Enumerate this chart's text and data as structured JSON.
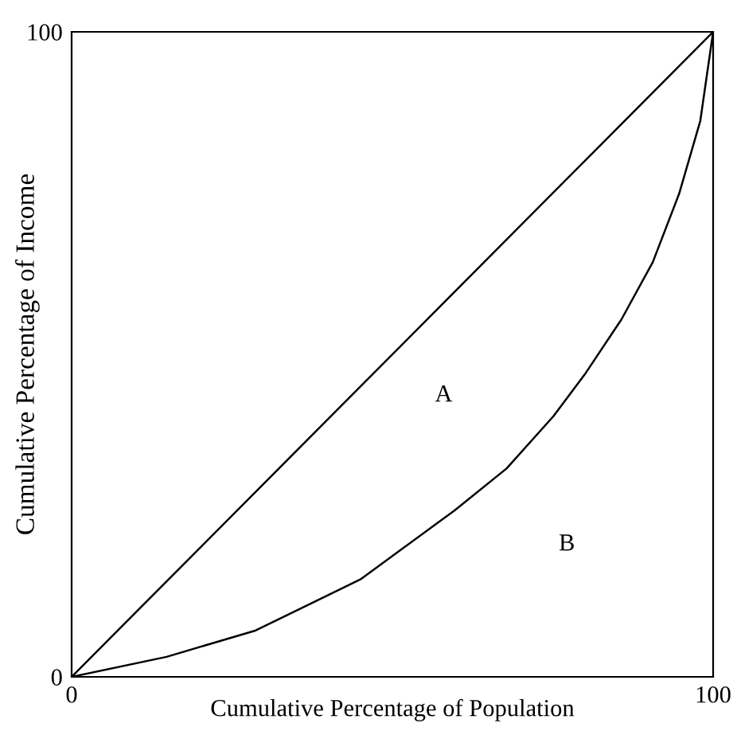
{
  "chart_data": {
    "type": "line",
    "xlabel": "Cumulative Percentage of Population",
    "ylabel": "Cumulative Percentage of Income",
    "x": [
      0,
      14.8,
      28.7,
      45,
      59.7,
      67.8,
      75.1,
      80,
      85.7,
      90.6,
      94.7,
      98,
      100
    ],
    "series": [
      {
        "color": "#000000",
        "x": [
          0,
          100
        ],
        "values": [
          0,
          100
        ]
      },
      {
        "color": "#000000",
        "values": [
          0,
          3.1,
          7.2,
          15.1,
          25.8,
          32.3,
          40.4,
          46.9,
          55.4,
          64.3,
          74.9,
          86.2,
          100
        ]
      }
    ],
    "xlim": [
      0,
      100
    ],
    "ylim": [
      0,
      100
    ],
    "xticks": [
      0,
      100
    ],
    "yticks": [
      0,
      100
    ],
    "annotations": [
      "A",
      "B"
    ],
    "grid": false,
    "legend": false,
    "marker": "none",
    "line_style": "solid"
  }
}
